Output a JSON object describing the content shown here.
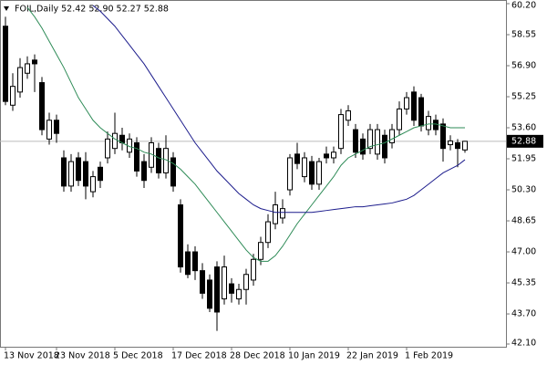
{
  "chart_data": {
    "type": "candlestick",
    "title": "FOIL,Daily  52.42 52.90 52.27 52.88",
    "categories": [
      "13 Nov 2018",
      null,
      null,
      null,
      null,
      null,
      null,
      "23 Nov 2018",
      null,
      null,
      null,
      null,
      null,
      null,
      null,
      "5 Dec 2018",
      null,
      null,
      null,
      null,
      null,
      null,
      null,
      "17 Dec 2018",
      null,
      null,
      null,
      null,
      null,
      null,
      null,
      "28 Dec 2018",
      null,
      null,
      null,
      null,
      null,
      null,
      null,
      "10 Jan 2019",
      null,
      null,
      null,
      null,
      null,
      null,
      null,
      "22 Jan 2019",
      null,
      null,
      null,
      null,
      null,
      null,
      null,
      "1 Feb 2019",
      null,
      null,
      null,
      null,
      null,
      null,
      null,
      null
    ],
    "open": [
      59.0,
      54.8,
      55.5,
      56.5,
      57.2,
      56.0,
      53.0,
      54.0,
      52.0,
      50.5,
      52.0,
      51.8,
      50.2,
      51.5,
      52.0,
      52.5,
      53.2,
      52.3,
      52.8,
      51.8,
      51.5,
      52.5,
      51.2,
      52.0,
      49.5,
      47.0,
      47.0,
      46.0,
      45.5,
      46.2,
      44.5,
      45.3,
      44.5,
      45.0,
      45.5,
      46.6,
      47.5,
      48.5,
      48.8,
      50.3,
      52.2,
      51.0,
      51.8,
      50.6,
      52.2,
      52.0,
      52.5,
      54.0,
      53.5,
      53.0,
      52.5,
      52.2,
      53.2,
      52.8,
      53.5,
      54.6,
      55.5,
      55.2,
      53.5,
      54.0,
      53.8,
      52.7,
      52.8,
      52.42
    ],
    "high": [
      59.5,
      56.5,
      57.3,
      57.4,
      57.5,
      56.3,
      54.4,
      54.3,
      52.4,
      52.2,
      52.3,
      52.3,
      51.3,
      51.8,
      53.4,
      54.4,
      53.6,
      53.3,
      53.1,
      52.2,
      53.1,
      52.8,
      53.2,
      52.3,
      49.8,
      47.4,
      47.3,
      46.4,
      45.8,
      46.5,
      46.8,
      45.6,
      45.3,
      46.1,
      46.9,
      47.8,
      49.0,
      50.2,
      49.8,
      52.2,
      52.8,
      52.3,
      52.1,
      52.0,
      52.6,
      52.6,
      54.6,
      54.8,
      53.8,
      53.3,
      53.8,
      53.8,
      53.5,
      53.8,
      55.0,
      55.5,
      55.8,
      55.4,
      54.5,
      54.3,
      54.1,
      53.2,
      53.0,
      52.9
    ],
    "low": [
      54.8,
      54.5,
      55.2,
      56.2,
      55.5,
      53.2,
      52.7,
      52.8,
      50.2,
      50.2,
      50.5,
      49.8,
      49.9,
      50.4,
      51.7,
      52.2,
      52.4,
      52.0,
      51.0,
      50.4,
      51.2,
      50.9,
      50.9,
      50.2,
      45.9,
      45.6,
      45.5,
      44.5,
      43.8,
      42.8,
      44.2,
      44.3,
      44.2,
      44.2,
      45.2,
      46.3,
      47.2,
      48.2,
      48.5,
      50.0,
      51.4,
      50.7,
      50.3,
      50.3,
      51.7,
      51.7,
      52.2,
      53.7,
      52.0,
      51.9,
      52.2,
      51.9,
      51.7,
      52.5,
      53.2,
      54.3,
      53.7,
      53.4,
      53.2,
      53.2,
      51.8,
      52.4,
      51.5,
      52.27
    ],
    "close": [
      55.0,
      55.8,
      56.8,
      57.0,
      57.0,
      53.5,
      54.0,
      53.3,
      50.5,
      51.8,
      50.8,
      50.5,
      51.0,
      50.8,
      53.0,
      53.3,
      52.8,
      53.0,
      51.3,
      50.8,
      52.8,
      51.2,
      52.5,
      50.5,
      46.2,
      45.8,
      46.0,
      44.8,
      44.0,
      43.8,
      46.2,
      44.8,
      45.0,
      45.8,
      46.6,
      47.5,
      48.6,
      49.5,
      49.3,
      52.0,
      51.7,
      52.0,
      50.6,
      51.8,
      52.0,
      52.3,
      54.3,
      54.5,
      52.3,
      52.2,
      53.5,
      53.5,
      52.0,
      53.5,
      54.6,
      55.2,
      54.0,
      53.7,
      54.2,
      53.5,
      52.5,
      52.9,
      52.5,
      52.88
    ],
    "up_color": "#ffffff",
    "down_color": "#000000",
    "moving_averages": [
      {
        "color": "#2e8b57",
        "values": [
          null,
          null,
          null,
          60.0,
          59.5,
          58.9,
          58.2,
          57.5,
          56.8,
          56.0,
          55.2,
          54.6,
          54.0,
          53.6,
          53.3,
          53.0,
          52.8,
          52.6,
          52.5,
          52.3,
          52.2,
          52.0,
          51.9,
          51.7,
          51.4,
          51.0,
          50.6,
          50.1,
          49.6,
          49.1,
          48.6,
          48.1,
          47.6,
          47.1,
          46.7,
          46.5,
          46.5,
          46.8,
          47.3,
          47.9,
          48.5,
          49.0,
          49.5,
          50.0,
          50.5,
          51.0,
          51.6,
          52.0,
          52.2,
          52.4,
          52.6,
          52.7,
          52.8,
          53.0,
          53.2,
          53.4,
          53.6,
          53.7,
          53.8,
          53.8,
          53.7,
          53.6,
          53.6,
          53.6
        ]
      },
      {
        "color": "#1c1c8c",
        "values": [
          null,
          null,
          null,
          null,
          null,
          null,
          null,
          null,
          null,
          null,
          null,
          null,
          60.1,
          59.8,
          59.4,
          59.0,
          58.5,
          58.0,
          57.5,
          57.0,
          56.4,
          55.8,
          55.2,
          54.6,
          54.0,
          53.4,
          52.8,
          52.3,
          51.8,
          51.3,
          50.9,
          50.5,
          50.1,
          49.8,
          49.5,
          49.3,
          49.2,
          49.1,
          49.1,
          49.1,
          49.1,
          49.1,
          49.1,
          49.15,
          49.2,
          49.25,
          49.3,
          49.35,
          49.4,
          49.4,
          49.45,
          49.5,
          49.55,
          49.6,
          49.7,
          49.8,
          50.0,
          50.3,
          50.6,
          50.9,
          51.2,
          51.4,
          51.6,
          51.9
        ]
      }
    ],
    "last_price": 52.88,
    "ylim": [
      42.1,
      60.2
    ],
    "yticks": [
      {
        "value": 42.1,
        "label": "42.10"
      },
      {
        "value": 43.7,
        "label": "43.70"
      },
      {
        "value": 45.35,
        "label": "45.35"
      },
      {
        "value": 47,
        "label": "47.00"
      },
      {
        "value": 48.65,
        "label": "48.65"
      },
      {
        "value": 50.3,
        "label": "50.30"
      },
      {
        "value": 51.95,
        "label": "51.95"
      },
      {
        "value": 53.6,
        "label": "53.60"
      },
      {
        "value": 55.25,
        "label": "55.25"
      },
      {
        "value": 56.9,
        "label": "56.90"
      },
      {
        "value": 58.55,
        "label": "58.55"
      },
      {
        "value": 60.2,
        "label": "60.20"
      }
    ]
  }
}
